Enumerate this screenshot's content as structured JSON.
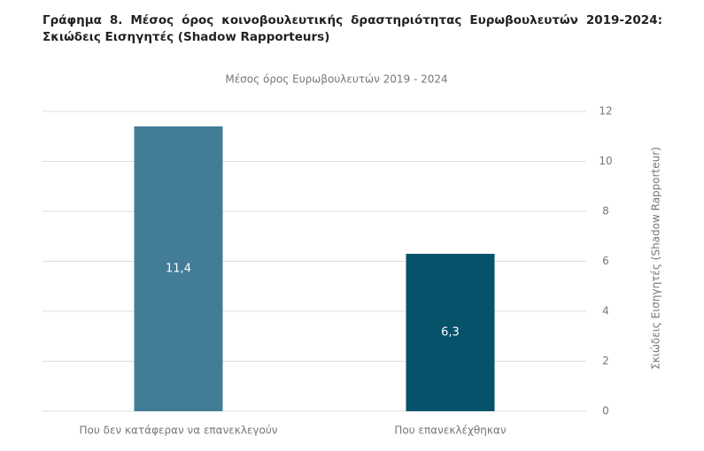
{
  "chart_data": {
    "type": "bar",
    "title": "Γράφημα 8. Μέσος όρος κοινοβουλευτικής δραστηριότητας Ευρωβουλευτών 2019-2024: Σκιώδεις Εισηγητές (Shadow Rapporteurs)",
    "subtitle": "Μέσος όρος Ευρωβουλευτών 2019 - 2024",
    "y_label": "Σκιώδεις Εισηγητές (Shadow Rapporteur)",
    "categories": [
      "Που δεν κατάφεραν να επανεκλεγούν",
      "Που επανεκλέχθηκαν"
    ],
    "values": [
      11.4,
      6.3
    ],
    "value_labels": [
      "11,4",
      "6,3"
    ],
    "colors": [
      "#427c96",
      "#06526b"
    ],
    "ylim": [
      0,
      12
    ],
    "yticks": [
      0,
      2,
      4,
      6,
      8,
      10,
      12
    ],
    "grid": true,
    "y_axis_side": "right"
  }
}
